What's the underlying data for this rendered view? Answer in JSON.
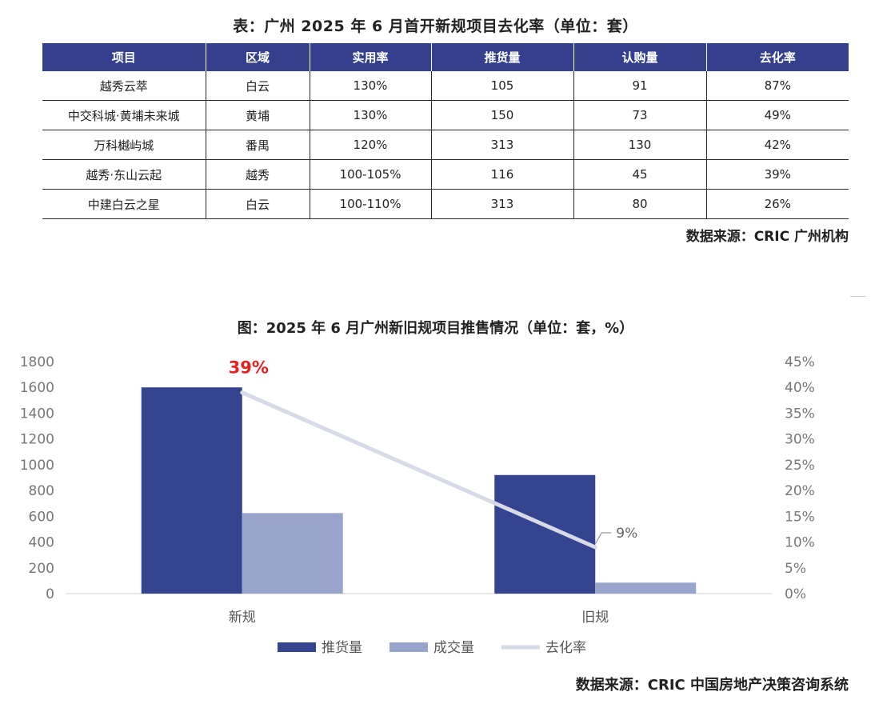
{
  "table": {
    "title": "表：广州 2025 年 6 月首开新规项目去化率（单位：套）",
    "headers": [
      "项目",
      "区域",
      "实用率",
      "推货量",
      "认购量",
      "去化率"
    ],
    "rows": [
      [
        "越秀云萃",
        "白云",
        "130%",
        "105",
        "91",
        "87%"
      ],
      [
        "中交科城·黄埔未来城",
        "黄埔",
        "130%",
        "150",
        "73",
        "49%"
      ],
      [
        "万科樾屿城",
        "番禺",
        "120%",
        "313",
        "130",
        "42%"
      ],
      [
        "越秀·东山云起",
        "越秀",
        "100-105%",
        "116",
        "45",
        "39%"
      ],
      [
        "中建白云之星",
        "白云",
        "100-110%",
        "313",
        "80",
        "26%"
      ]
    ],
    "source": "数据来源：CRIC 广州机构"
  },
  "chart_data": {
    "type": "bar",
    "title": "图：2025 年 6 月广州新旧规项目推售情况（单位：套，%）",
    "categories": [
      "新规",
      "旧规"
    ],
    "series": [
      {
        "name": "推货量",
        "type": "bar",
        "axis": "left",
        "color": "#35448f",
        "values": [
          1600,
          920
        ]
      },
      {
        "name": "成交量",
        "type": "bar",
        "axis": "left",
        "color": "#9aa5cc",
        "values": [
          625,
          85
        ]
      },
      {
        "name": "去化率",
        "type": "line",
        "axis": "right",
        "color": "#d7dbe8",
        "values": [
          39,
          9
        ]
      }
    ],
    "data_labels": [
      "39%",
      "9%"
    ],
    "ylim_left": [
      0,
      1800
    ],
    "yticks_left": [
      "0",
      "200",
      "400",
      "600",
      "800",
      "1000",
      "1200",
      "1400",
      "1600",
      "1800"
    ],
    "ylim_right": [
      0,
      45
    ],
    "yticks_right": [
      "0%",
      "5%",
      "10%",
      "15%",
      "20%",
      "25%",
      "30%",
      "35%",
      "40%",
      "45%"
    ],
    "legend_position": "bottom",
    "grid": false,
    "label_color_highlight": "#e52222"
  },
  "chart_source": "数据来源：CRIC 中国房地产决策咨询系统"
}
